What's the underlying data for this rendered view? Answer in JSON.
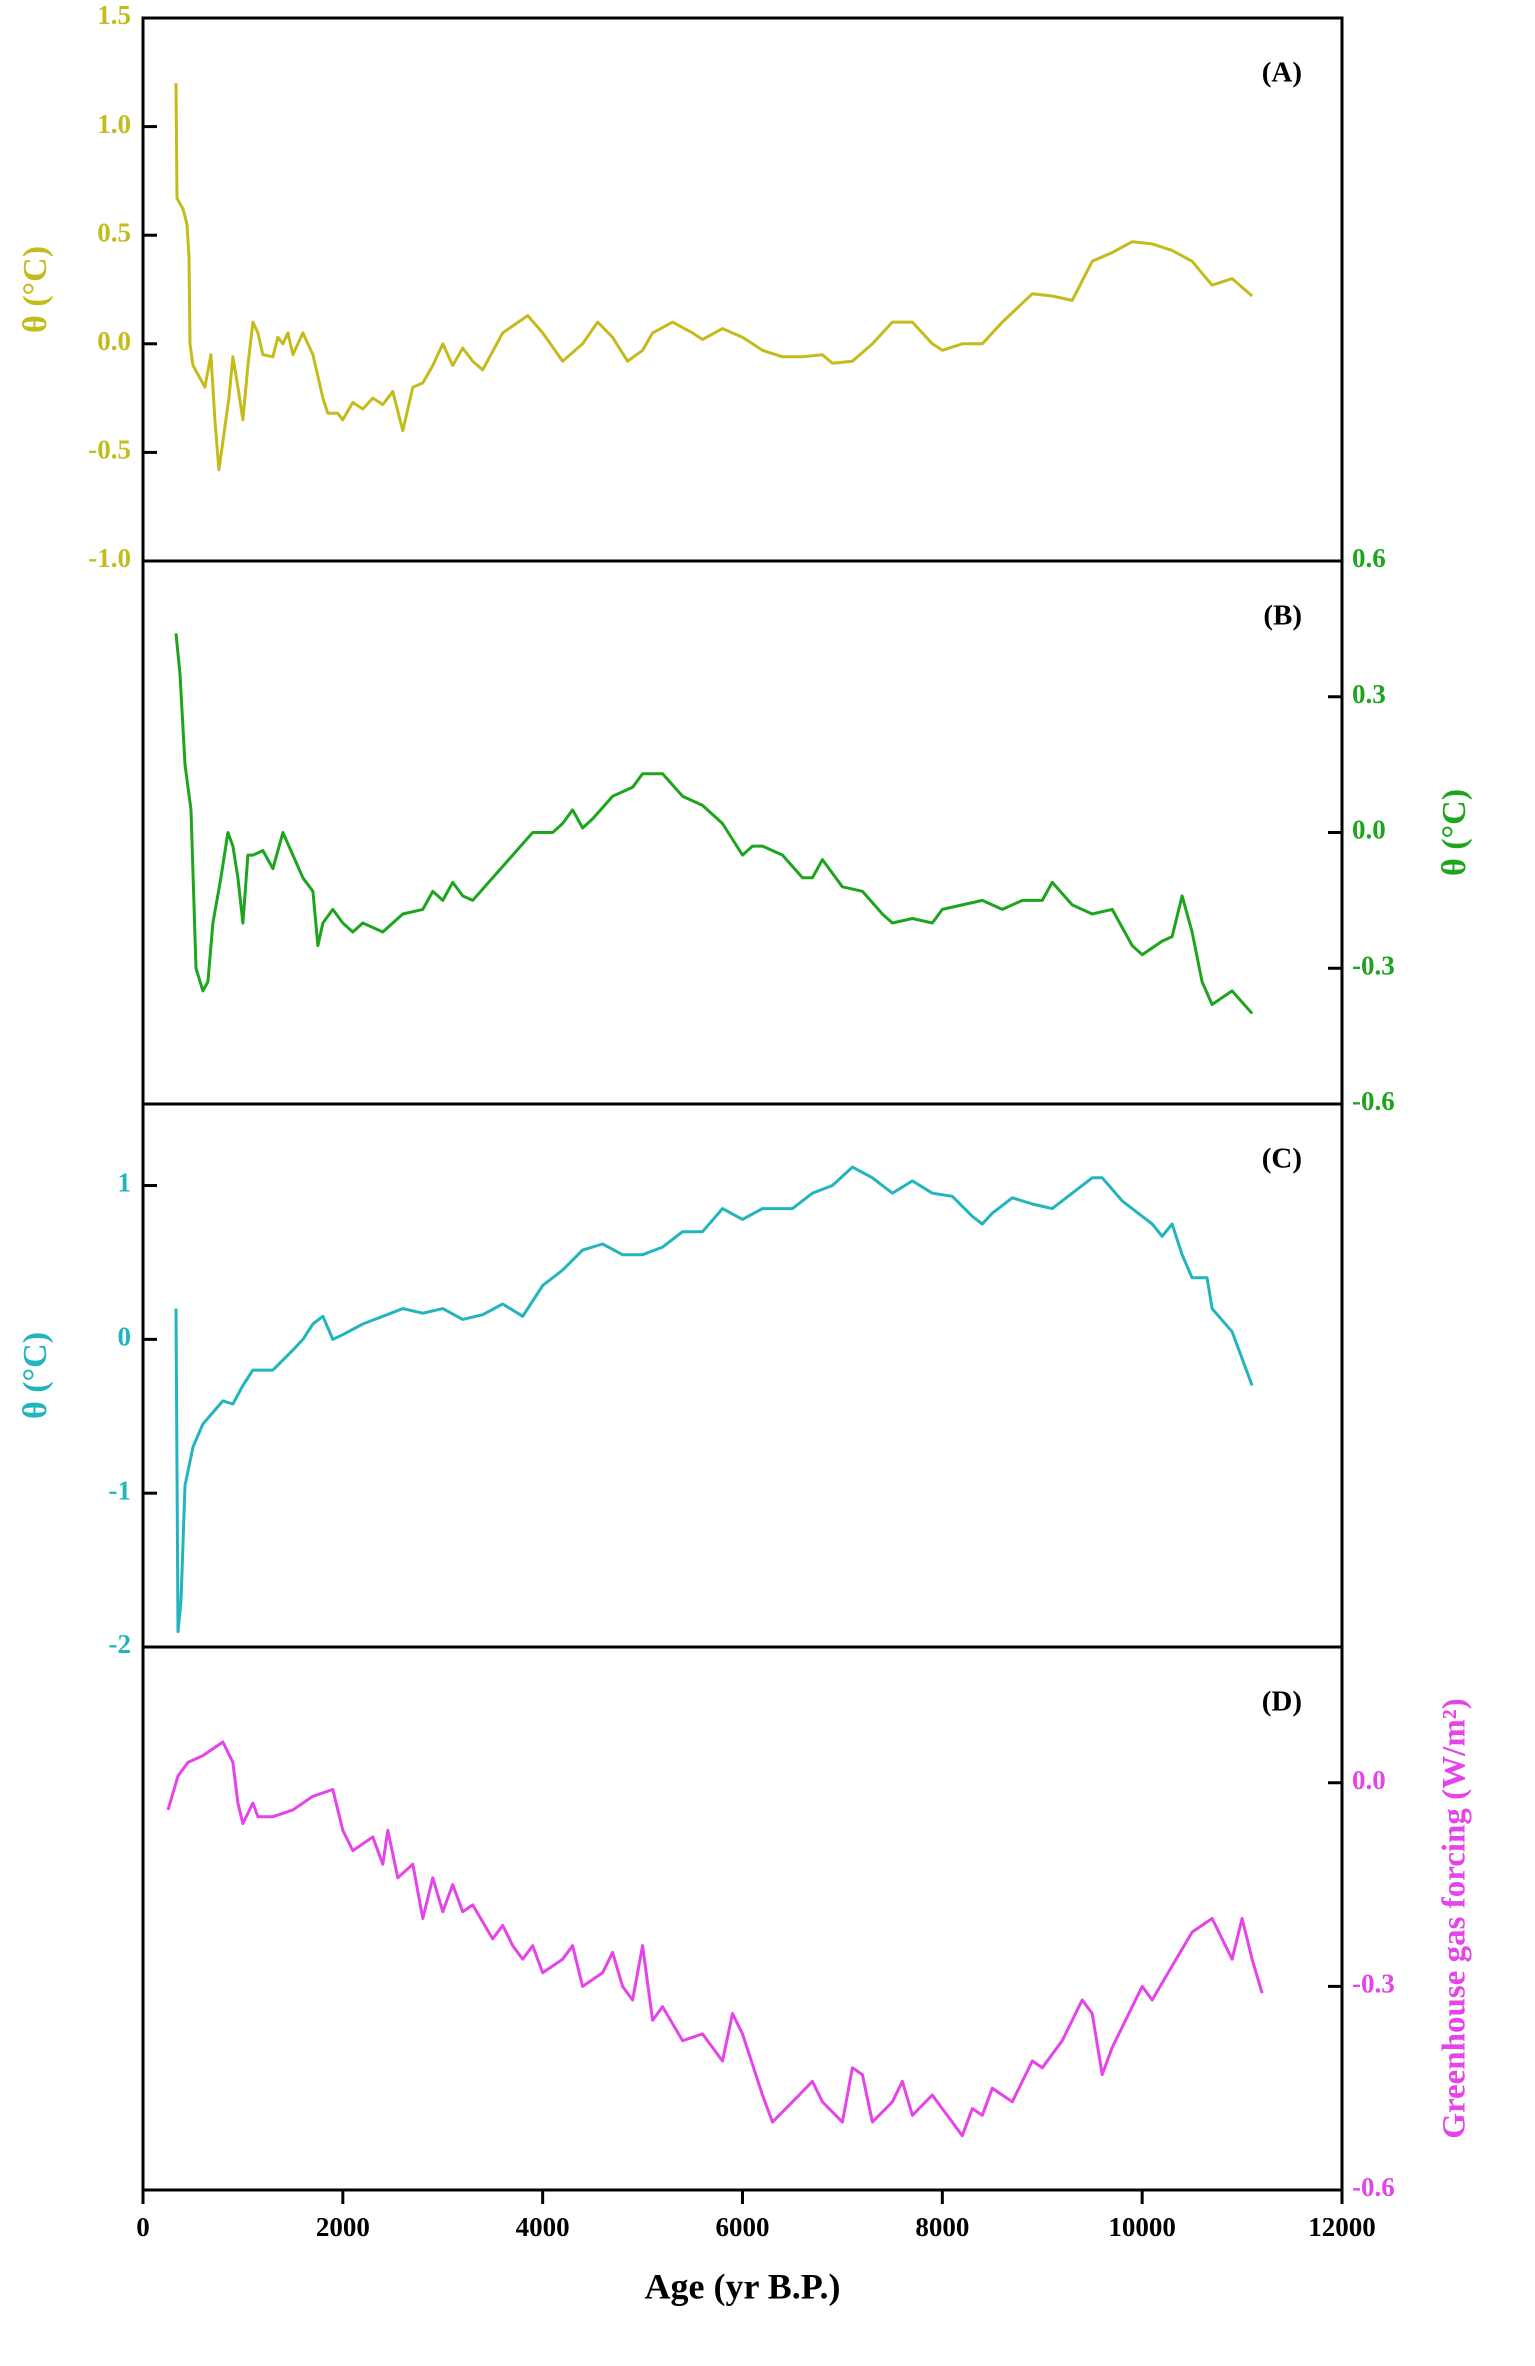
{
  "chart_data": [
    {
      "type": "line",
      "annotation": "(A)",
      "ylabel": "θ (°C)",
      "y_axis_side": "left",
      "color": "#c4bc1c",
      "xlim": [
        0,
        12000
      ],
      "ylim": [
        -1,
        1.5
      ],
      "yticks": [
        1.5,
        {
          "value": 1,
          "label": "1.0"
        },
        0.5,
        {
          "value": 0,
          "label": "0.0"
        },
        -0.5,
        {
          "value": -1,
          "label": "-1.0"
        }
      ],
      "x": [
        330,
        340,
        400,
        440,
        460,
        470,
        500,
        560,
        620,
        680,
        720,
        760,
        800,
        860,
        900,
        950,
        1000,
        1050,
        1100,
        1150,
        1200,
        1300,
        1350,
        1400,
        1450,
        1500,
        1600,
        1700,
        1800,
        1850,
        1950,
        2000,
        2100,
        2200,
        2300,
        2400,
        2500,
        2600,
        2700,
        2800,
        2900,
        3000,
        3100,
        3200,
        3300,
        3400,
        3600,
        3850,
        4000,
        4200,
        4400,
        4550,
        4700,
        4850,
        5000,
        5100,
        5300,
        5500,
        5600,
        5800,
        6000,
        6200,
        6400,
        6600,
        6800,
        6900,
        7100,
        7300,
        7500,
        7700,
        7900,
        8000,
        8200,
        8400,
        8600,
        8900,
        9100,
        9300,
        9500,
        9700,
        9900,
        10100,
        10300,
        10500,
        10700,
        10900,
        11100
      ],
      "values": [
        1.2,
        0.67,
        0.62,
        0.55,
        0.4,
        0.0,
        -0.1,
        -0.15,
        -0.2,
        -0.05,
        -0.35,
        -0.58,
        -0.45,
        -0.25,
        -0.06,
        -0.2,
        -0.35,
        -0.1,
        0.1,
        0.05,
        -0.05,
        -0.06,
        0.03,
        0.0,
        0.05,
        -0.05,
        0.05,
        -0.05,
        -0.25,
        -0.32,
        -0.32,
        -0.35,
        -0.27,
        -0.3,
        -0.25,
        -0.28,
        -0.22,
        -0.4,
        -0.2,
        -0.18,
        -0.1,
        0.0,
        -0.1,
        -0.02,
        -0.08,
        -0.12,
        0.05,
        0.13,
        0.05,
        -0.08,
        0.0,
        0.1,
        0.03,
        -0.08,
        -0.03,
        0.05,
        0.1,
        0.05,
        0.02,
        0.07,
        0.03,
        -0.03,
        -0.06,
        -0.06,
        -0.05,
        -0.09,
        -0.08,
        0.0,
        0.1,
        0.1,
        0.0,
        -0.03,
        0.0,
        0.0,
        0.1,
        0.23,
        0.22,
        0.2,
        0.38,
        0.42,
        0.47,
        0.46,
        0.43,
        0.38,
        0.27,
        0.3,
        0.22
      ]
    },
    {
      "type": "line",
      "annotation": "(B)",
      "ylabel": "θ (°C)",
      "y_axis_side": "right",
      "color": "#1ea51e",
      "xlim": [
        0,
        12000
      ],
      "ylim": [
        -0.6,
        0.6
      ],
      "yticks": [
        0.6,
        0.3,
        {
          "value": 0,
          "label": "0.0"
        },
        -0.3,
        -0.6
      ],
      "x": [
        330,
        370,
        420,
        480,
        530,
        600,
        650,
        700,
        780,
        850,
        900,
        950,
        1000,
        1050,
        1100,
        1200,
        1300,
        1400,
        1500,
        1600,
        1700,
        1750,
        1800,
        1900,
        2000,
        2100,
        2200,
        2400,
        2500,
        2600,
        2800,
        2900,
        3000,
        3100,
        3200,
        3300,
        3500,
        3700,
        3900,
        4100,
        4200,
        4300,
        4400,
        4500,
        4700,
        4900,
        5000,
        5200,
        5400,
        5600,
        5800,
        6000,
        6100,
        6200,
        6400,
        6600,
        6700,
        6800,
        7000,
        7200,
        7400,
        7500,
        7700,
        7900,
        8000,
        8200,
        8400,
        8600,
        8800,
        9000,
        9100,
        9300,
        9500,
        9700,
        9900,
        10000,
        10200,
        10300,
        10400,
        10500,
        10600,
        10700,
        10900,
        11100
      ],
      "values": [
        0.44,
        0.35,
        0.15,
        0.05,
        -0.3,
        -0.35,
        -0.33,
        -0.2,
        -0.1,
        0.0,
        -0.03,
        -0.1,
        -0.2,
        -0.05,
        -0.05,
        -0.04,
        -0.08,
        0.0,
        -0.05,
        -0.1,
        -0.13,
        -0.25,
        -0.2,
        -0.17,
        -0.2,
        -0.22,
        -0.2,
        -0.22,
        -0.2,
        -0.18,
        -0.17,
        -0.13,
        -0.15,
        -0.11,
        -0.14,
        -0.15,
        -0.1,
        -0.05,
        0.0,
        0.0,
        0.02,
        0.05,
        0.01,
        0.03,
        0.08,
        0.1,
        0.13,
        0.13,
        0.08,
        0.06,
        0.02,
        -0.05,
        -0.03,
        -0.03,
        -0.05,
        -0.1,
        -0.1,
        -0.06,
        -0.12,
        -0.13,
        -0.18,
        -0.2,
        -0.19,
        -0.2,
        -0.17,
        -0.16,
        -0.15,
        -0.17,
        -0.15,
        -0.15,
        -0.11,
        -0.16,
        -0.18,
        -0.17,
        -0.25,
        -0.27,
        -0.24,
        -0.23,
        -0.14,
        -0.22,
        -0.33,
        -0.38,
        -0.35,
        -0.4
      ]
    },
    {
      "type": "line",
      "annotation": "(C)",
      "ylabel": "θ (°C)",
      "y_axis_side": "left",
      "color": "#22b5bd",
      "xlim": [
        0,
        12000
      ],
      "ylim": [
        -2,
        1.53
      ],
      "yticks": [
        1,
        0,
        -1,
        -2
      ],
      "x": [
        330,
        350,
        380,
        420,
        500,
        600,
        800,
        900,
        1000,
        1100,
        1300,
        1500,
        1600,
        1700,
        1800,
        1900,
        2000,
        2200,
        2400,
        2600,
        2800,
        3000,
        3200,
        3400,
        3600,
        3800,
        4000,
        4200,
        4400,
        4600,
        4800,
        5000,
        5200,
        5400,
        5600,
        5800,
        6000,
        6200,
        6500,
        6700,
        6900,
        7100,
        7300,
        7500,
        7700,
        7900,
        8100,
        8300,
        8400,
        8500,
        8700,
        8900,
        9100,
        9300,
        9500,
        9600,
        9800,
        10000,
        10100,
        10200,
        10300,
        10400,
        10500,
        10650,
        10700,
        10900,
        11100
      ],
      "values": [
        0.2,
        -1.9,
        -1.7,
        -0.95,
        -0.7,
        -0.55,
        -0.4,
        -0.42,
        -0.3,
        -0.2,
        -0.2,
        -0.07,
        0.0,
        0.1,
        0.15,
        0.0,
        0.03,
        0.1,
        0.15,
        0.2,
        0.17,
        0.2,
        0.13,
        0.16,
        0.23,
        0.15,
        0.35,
        0.45,
        0.58,
        0.62,
        0.55,
        0.55,
        0.6,
        0.7,
        0.7,
        0.85,
        0.78,
        0.85,
        0.85,
        0.95,
        1.0,
        1.12,
        1.05,
        0.95,
        1.03,
        0.95,
        0.93,
        0.8,
        0.75,
        0.82,
        0.92,
        0.88,
        0.85,
        0.95,
        1.05,
        1.05,
        0.9,
        0.8,
        0.75,
        0.67,
        0.75,
        0.55,
        0.4,
        0.4,
        0.2,
        0.05,
        -0.3
      ]
    },
    {
      "type": "line",
      "annotation": "(D)",
      "ylabel": "Greenhouse gas forcing (W/m²)",
      "y_axis_side": "right",
      "color": "#e444e8",
      "xlabel": "Age (yr B.P.)",
      "xlim": [
        0,
        12000
      ],
      "ylim": [
        -0.6,
        0.2
      ],
      "xticks": [
        0,
        2000,
        4000,
        6000,
        8000,
        10000,
        12000
      ],
      "yticks": [
        {
          "value": 0,
          "label": "0.0"
        },
        -0.3,
        -0.6
      ],
      "x": [
        250,
        350,
        450,
        600,
        800,
        900,
        950,
        1000,
        1100,
        1150,
        1300,
        1500,
        1700,
        1900,
        2000,
        2100,
        2300,
        2400,
        2450,
        2550,
        2700,
        2800,
        2900,
        3000,
        3100,
        3200,
        3300,
        3500,
        3600,
        3700,
        3800,
        3900,
        4000,
        4200,
        4300,
        4400,
        4600,
        4700,
        4800,
        4900,
        5000,
        5100,
        5200,
        5400,
        5600,
        5800,
        5900,
        6000,
        6200,
        6300,
        6500,
        6700,
        6800,
        7000,
        7100,
        7200,
        7300,
        7500,
        7600,
        7700,
        7900,
        8000,
        8200,
        8300,
        8400,
        8500,
        8700,
        8900,
        9000,
        9200,
        9400,
        9500,
        9600,
        9700,
        9900,
        10000,
        10100,
        10300,
        10500,
        10700,
        10900,
        11000,
        11100,
        11200
      ],
      "values": [
        -0.04,
        0.01,
        0.03,
        0.04,
        0.06,
        0.03,
        -0.03,
        -0.06,
        -0.03,
        -0.05,
        -0.05,
        -0.04,
        -0.02,
        -0.01,
        -0.07,
        -0.1,
        -0.08,
        -0.12,
        -0.07,
        -0.14,
        -0.12,
        -0.2,
        -0.14,
        -0.19,
        -0.15,
        -0.19,
        -0.18,
        -0.23,
        -0.21,
        -0.24,
        -0.26,
        -0.24,
        -0.28,
        -0.26,
        -0.24,
        -0.3,
        -0.28,
        -0.25,
        -0.3,
        -0.32,
        -0.24,
        -0.35,
        -0.33,
        -0.38,
        -0.37,
        -0.41,
        -0.34,
        -0.37,
        -0.46,
        -0.5,
        -0.47,
        -0.44,
        -0.47,
        -0.5,
        -0.42,
        -0.43,
        -0.5,
        -0.47,
        -0.44,
        -0.49,
        -0.46,
        -0.48,
        -0.52,
        -0.48,
        -0.49,
        -0.45,
        -0.47,
        -0.41,
        -0.42,
        -0.38,
        -0.32,
        -0.34,
        -0.43,
        -0.39,
        -0.33,
        -0.3,
        -0.32,
        -0.27,
        -0.22,
        -0.2,
        -0.26,
        -0.2,
        -0.26,
        -0.31
      ]
    }
  ]
}
